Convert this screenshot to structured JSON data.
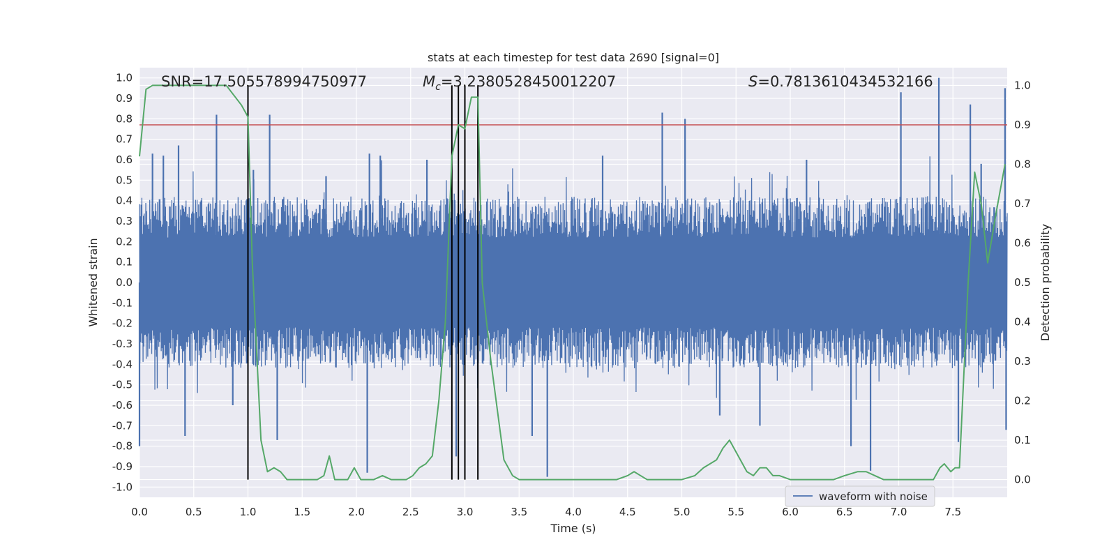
{
  "chart_data": {
    "type": "line",
    "title": "stats at each timestep for test data 2690 [signal=0]",
    "xlabel": "Time (s)",
    "ylabel_left": "Whitened strain",
    "ylabel_right": "Detection probability",
    "xlim": [
      0,
      8
    ],
    "ylim_left": [
      -1.05,
      1.05
    ],
    "ylim_right": [
      -0.045,
      1.045
    ],
    "x_ticks": [
      0.0,
      0.5,
      1.0,
      1.5,
      2.0,
      2.5,
      3.0,
      3.5,
      4.0,
      4.5,
      5.0,
      5.5,
      6.0,
      6.5,
      7.0,
      7.5
    ],
    "x_tick_labels": [
      "0.0",
      "0.5",
      "1.0",
      "1.5",
      "2.0",
      "2.5",
      "3.0",
      "3.5",
      "4.0",
      "4.5",
      "5.0",
      "5.5",
      "6.0",
      "6.5",
      "7.0",
      "7.5"
    ],
    "y_left_ticks": [
      1.0,
      0.9,
      0.8,
      0.7,
      0.6,
      0.5,
      0.4,
      0.3,
      0.2,
      0.1,
      0.0,
      -0.1,
      -0.2,
      -0.3,
      -0.4,
      -0.5,
      -0.6,
      -0.7,
      -0.8,
      -0.9,
      -1.0
    ],
    "y_left_tick_labels": [
      "1.0",
      "0.9",
      "0.8",
      "0.7",
      "0.6",
      "0.5",
      "0.4",
      "0.3",
      "0.2",
      "0.1",
      "0.0",
      "-0.1",
      "-0.2",
      "-0.3",
      "-0.4",
      "-0.5",
      "-0.6",
      "-0.7",
      "-0.8",
      "-0.9",
      "-1.0"
    ],
    "y_right_ticks": [
      1.0,
      0.9,
      0.8,
      0.7,
      0.6,
      0.5,
      0.4,
      0.3,
      0.2,
      0.1,
      0.0
    ],
    "y_right_tick_labels": [
      "1.0",
      "0.9",
      "0.8",
      "0.7",
      "0.6",
      "0.5",
      "0.4",
      "0.3",
      "0.2",
      "0.1",
      "0.0"
    ],
    "annotations": {
      "snr": "SNR=17.505578994750977",
      "mc_symbol": "M",
      "mc_sub": "c",
      "mc_value": "=3.2380528450012207",
      "s_symbol": "S",
      "s_value": "=0.7813610434532166"
    },
    "threshold_line": {
      "value_right_axis": 0.9,
      "color": "#c44e52"
    },
    "vertical_markers_s": [
      1.0,
      2.88,
      2.94,
      3.0,
      3.12
    ],
    "legend": {
      "label": "waveform with noise",
      "location": "lower-right"
    },
    "series": [
      {
        "name": "waveform with noise",
        "axis": "left",
        "color": "#4c72b0",
        "description": "whitened strain noise, typical envelope +/-0.35 to +/-0.6 with occasional spikes",
        "spikes": [
          {
            "x": 0.0,
            "y": -0.8
          },
          {
            "x": 0.12,
            "y": 0.63
          },
          {
            "x": 0.22,
            "y": 0.62
          },
          {
            "x": 0.36,
            "y": 0.67
          },
          {
            "x": 0.42,
            "y": -0.75
          },
          {
            "x": 0.71,
            "y": 0.82
          },
          {
            "x": 0.86,
            "y": -0.6
          },
          {
            "x": 1.05,
            "y": 0.55
          },
          {
            "x": 1.2,
            "y": 0.82
          },
          {
            "x": 1.27,
            "y": -0.77
          },
          {
            "x": 1.72,
            "y": 0.52
          },
          {
            "x": 2.1,
            "y": -0.93
          },
          {
            "x": 2.12,
            "y": 0.63
          },
          {
            "x": 2.22,
            "y": 0.62
          },
          {
            "x": 2.65,
            "y": 0.6
          },
          {
            "x": 2.92,
            "y": -0.85
          },
          {
            "x": 3.62,
            "y": -0.75
          },
          {
            "x": 3.76,
            "y": -0.95
          },
          {
            "x": 4.27,
            "y": 0.62
          },
          {
            "x": 4.82,
            "y": 0.83
          },
          {
            "x": 5.03,
            "y": 0.8
          },
          {
            "x": 5.35,
            "y": -0.65
          },
          {
            "x": 5.72,
            "y": -0.7
          },
          {
            "x": 6.15,
            "y": 0.6
          },
          {
            "x": 6.56,
            "y": -0.8
          },
          {
            "x": 6.74,
            "y": -0.92
          },
          {
            "x": 7.02,
            "y": 0.93
          },
          {
            "x": 7.37,
            "y": 1.0
          },
          {
            "x": 7.55,
            "y": -0.78
          },
          {
            "x": 7.66,
            "y": 0.87
          },
          {
            "x": 7.76,
            "y": 0.58
          },
          {
            "x": 7.98,
            "y": 0.95
          },
          {
            "x": 7.99,
            "y": -0.72
          }
        ]
      },
      {
        "name": "detection probability",
        "axis": "right",
        "color": "#55a868",
        "x": [
          0.0,
          0.06,
          0.12,
          0.25,
          0.4,
          0.6,
          0.8,
          0.94,
          1.0,
          1.04,
          1.12,
          1.18,
          1.24,
          1.3,
          1.36,
          1.44,
          1.56,
          1.64,
          1.7,
          1.75,
          1.8,
          1.86,
          1.92,
          1.98,
          2.04,
          2.1,
          2.16,
          2.24,
          2.32,
          2.4,
          2.46,
          2.52,
          2.58,
          2.64,
          2.7,
          2.76,
          2.82,
          2.88,
          2.94,
          3.0,
          3.06,
          3.12,
          3.16,
          3.24,
          3.36,
          3.44,
          3.5,
          3.7,
          4.0,
          4.2,
          4.4,
          4.5,
          4.56,
          4.62,
          4.68,
          4.8,
          5.0,
          5.12,
          5.2,
          5.26,
          5.32,
          5.38,
          5.44,
          5.52,
          5.6,
          5.66,
          5.72,
          5.78,
          5.84,
          5.9,
          6.0,
          6.2,
          6.3,
          6.4,
          6.5,
          6.62,
          6.7,
          6.78,
          6.86,
          6.96,
          7.2,
          7.32,
          7.38,
          7.42,
          7.48,
          7.52,
          7.56,
          7.64,
          7.7,
          7.76,
          7.82,
          7.9,
          7.98
        ],
        "y": [
          0.82,
          0.99,
          1.0,
          1.0,
          1.0,
          1.0,
          1.0,
          0.95,
          0.92,
          0.55,
          0.1,
          0.02,
          0.03,
          0.02,
          0.0,
          0.0,
          0.0,
          0.0,
          0.01,
          0.06,
          0.0,
          0.0,
          0.0,
          0.03,
          0.0,
          0.0,
          0.0,
          0.01,
          0.0,
          0.0,
          0.0,
          0.01,
          0.03,
          0.04,
          0.06,
          0.2,
          0.4,
          0.82,
          0.9,
          0.89,
          0.97,
          0.97,
          0.5,
          0.3,
          0.05,
          0.01,
          0.0,
          0.0,
          0.0,
          0.0,
          0.0,
          0.01,
          0.02,
          0.01,
          0.0,
          0.0,
          0.0,
          0.01,
          0.03,
          0.04,
          0.05,
          0.08,
          0.1,
          0.06,
          0.02,
          0.01,
          0.03,
          0.03,
          0.01,
          0.01,
          0.0,
          0.0,
          0.0,
          0.0,
          0.01,
          0.02,
          0.02,
          0.01,
          0.0,
          0.0,
          0.0,
          0.0,
          0.03,
          0.04,
          0.02,
          0.03,
          0.03,
          0.5,
          0.78,
          0.7,
          0.55,
          0.68,
          0.8
        ]
      }
    ]
  }
}
